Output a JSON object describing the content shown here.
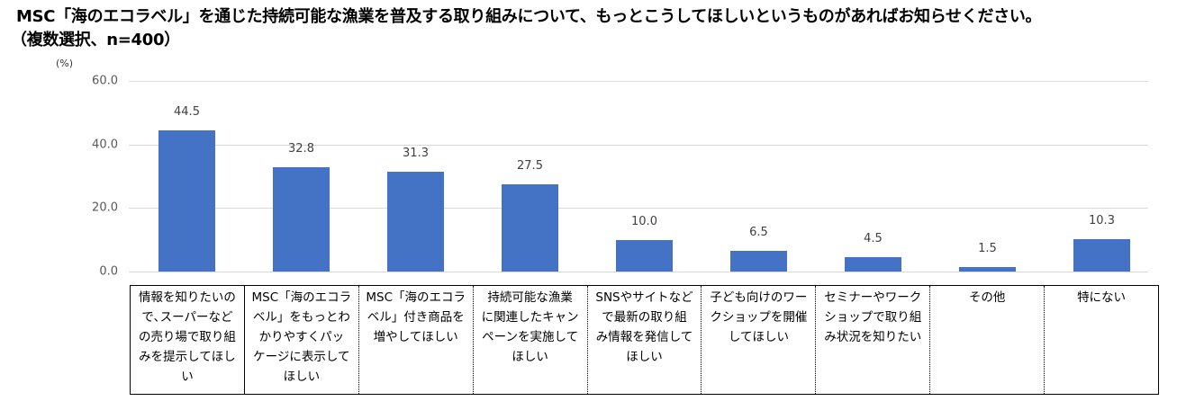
{
  "title": {
    "line1": "MSC「海のエコラベル」を通じた持続可能な漁業を普及する取り組みについて、もっとこうしてほしいというものがあればお知らせください。",
    "line2": "（複数選択、n=400）"
  },
  "colors": {
    "bar": "#4472C4",
    "gridline": "#d9d9d9",
    "tick_text": "#595959"
  },
  "chart_data": {
    "type": "bar",
    "title": "MSC「海のエコラベル」を通じた持続可能な漁業を普及する取り組みについて、もっとこうしてほしいというものがあればお知らせください。（複数選択、n=400）",
    "xlabel": "",
    "ylabel": "(%)",
    "ylim": [
      0,
      60
    ],
    "yticks": [
      "0.0",
      "20.0",
      "40.0",
      "60.0"
    ],
    "grid": true,
    "legend": "none",
    "categories": [
      "情報を知りたいので、スーパーなどの売り場で取り組みを提示してほしい",
      "MSC「海のエコラベル」をもっとわかりやすくパッケージに表示してほしい",
      "MSC「海のエコラベル」付き商品を増やしてほしい",
      "持続可能な漁業に関連したキャンペーンを実施してほしい",
      "SNSやサイトなどで最新の取り組み情報を発信してほしい",
      "子ども向けのワークショップを開催してほしい",
      "セミナーやワークショップで取り組み状況を知りたい",
      "その他",
      "特にない"
    ],
    "values": [
      44.5,
      32.8,
      31.3,
      27.5,
      10.0,
      6.5,
      4.5,
      1.5,
      10.3
    ],
    "value_labels": [
      "44.5",
      "32.8",
      "31.3",
      "27.5",
      "10.0",
      "6.5",
      "4.5",
      "1.5",
      "10.3"
    ]
  },
  "axis": {
    "unit": "(%)"
  },
  "table_cells": [
    {
      "lines": [
        "情報を知りたいの",
        "で､スーパーなど",
        "の売り場で取り組",
        "みを提示してほし",
        "い"
      ],
      "border": "none"
    },
    {
      "lines": [
        "MSC「海のエコラ",
        "ベル」をもっとわ",
        "かりやすくパッ",
        "ケージに表示して",
        "ほしい"
      ],
      "border": "solid"
    },
    {
      "lines": [
        "MSC「海のエコラ",
        "ベル」付き商品を",
        "増やしてほしい"
      ],
      "border": "dotted"
    },
    {
      "lines": [
        "持続可能な漁業",
        "に関連したキャン",
        "ペーンを実施して",
        "ほしい"
      ],
      "border": "dotted"
    },
    {
      "lines": [
        "SNSやサイトなど",
        "で最新の取り組",
        "み情報を発信して",
        "ほしい"
      ],
      "border": "dotted"
    },
    {
      "lines": [
        "子ども向けのワー",
        "クショップを開催",
        "してほしい"
      ],
      "border": "dotted"
    },
    {
      "lines": [
        "セミナーやワーク",
        "ショップで取り組",
        "み状況を知りたい"
      ],
      "border": "dotted"
    },
    {
      "lines": [
        "その他"
      ],
      "border": "dotted"
    },
    {
      "lines": [
        "特にない"
      ],
      "border": "dotted"
    }
  ]
}
